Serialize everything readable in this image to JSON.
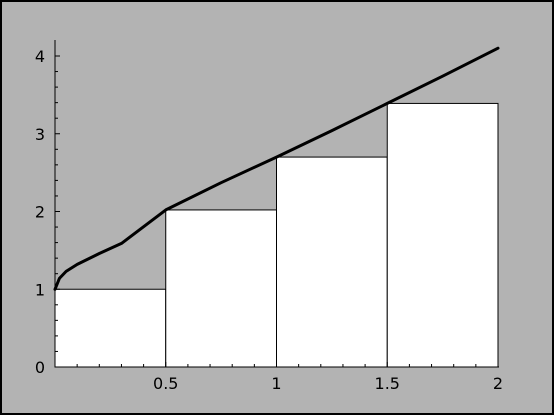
{
  "chart_data": {
    "type": "bar",
    "title": "",
    "xlabel": "",
    "ylabel": "",
    "xlim": [
      0,
      2
    ],
    "ylim": [
      0,
      4.2
    ],
    "x_ticks": [
      "0.5",
      "1",
      "1.5",
      "2"
    ],
    "y_ticks": [
      "0",
      "1",
      "2",
      "3",
      "4"
    ],
    "grid": false,
    "bars": [
      {
        "x_start": 0,
        "x_end": 0.5,
        "height": 1
      },
      {
        "x_start": 0.5,
        "x_end": 1,
        "height": 2.02
      },
      {
        "x_start": 1,
        "x_end": 1.5,
        "height": 2.7
      },
      {
        "x_start": 1.5,
        "x_end": 2,
        "height": 3.39
      }
    ],
    "curve": {
      "x": [
        0,
        0.02,
        0.05,
        0.1,
        0.2,
        0.3,
        0.5,
        0.75,
        1,
        1.25,
        1.5,
        1.75,
        2
      ],
      "y": [
        1,
        1.14,
        1.23,
        1.32,
        1.46,
        1.59,
        2.02,
        2.37,
        2.7,
        3.04,
        3.39,
        3.74,
        4.1
      ]
    },
    "colors": {
      "background": "#b3b3b3",
      "frame": "#000000",
      "bar_fill": "#ffffff",
      "bar_stroke": "#000000",
      "curve": "#000000"
    }
  }
}
